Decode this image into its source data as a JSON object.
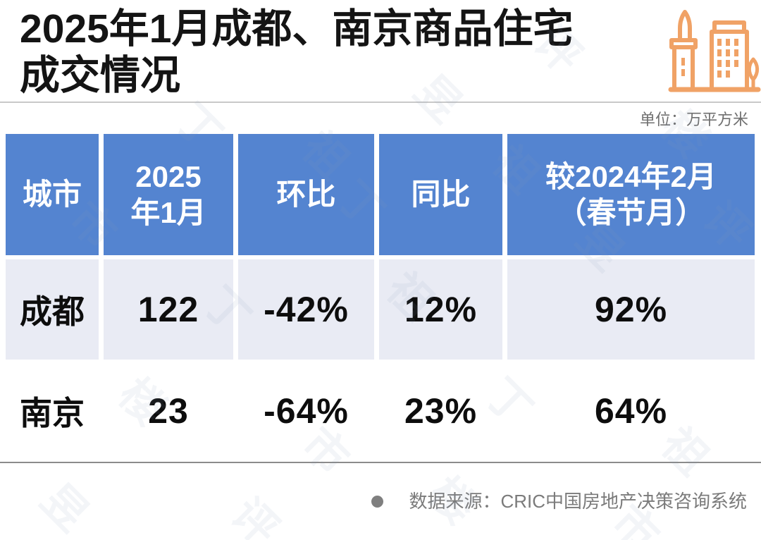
{
  "title": {
    "line1": "2025年1月成都、南京商品住宅",
    "line2": "成交情况"
  },
  "unit_label": "单位：万平方米",
  "icon": {
    "name": "buildings-icon",
    "color": "#F0A266"
  },
  "table": {
    "headers": [
      "城市",
      "2025\n年1月",
      "环比",
      "同比",
      "较2024年2月\n（春节月）"
    ],
    "rows": [
      {
        "city": "成都",
        "values": [
          "122",
          "-42%",
          "12%",
          "92%"
        ]
      },
      {
        "city": "南京",
        "values": [
          "23",
          "-64%",
          "23%",
          "64%"
        ]
      }
    ]
  },
  "footer": {
    "source": "数据来源：CRIC中国房地产决策咨询系统"
  },
  "watermark": {
    "chars": [
      "丁",
      "祖",
      "昱",
      "评",
      "楼",
      "市"
    ]
  },
  "colors": {
    "header_blue": "#5484D0",
    "row_light": "#E9EBF4",
    "accent_orange": "#F0A266",
    "text_dark": "#141414",
    "rule_light": "#C9C9C9",
    "rule_dark": "#8B8B8B",
    "footer_gray": "#7B7B7B"
  },
  "chart_data": {
    "type": "table",
    "title": "2025年1月成都、南京商品住宅成交情况",
    "unit": "万平方米",
    "columns": [
      "城市",
      "2025年1月",
      "环比",
      "同比",
      "较2024年2月（春节月）"
    ],
    "rows": [
      [
        "成都",
        122,
        "-42%",
        "12%",
        "92%"
      ],
      [
        "南京",
        23,
        "-64%",
        "23%",
        "64%"
      ]
    ],
    "source": "数据来源：CRIC中国房地产决策咨询系统"
  }
}
